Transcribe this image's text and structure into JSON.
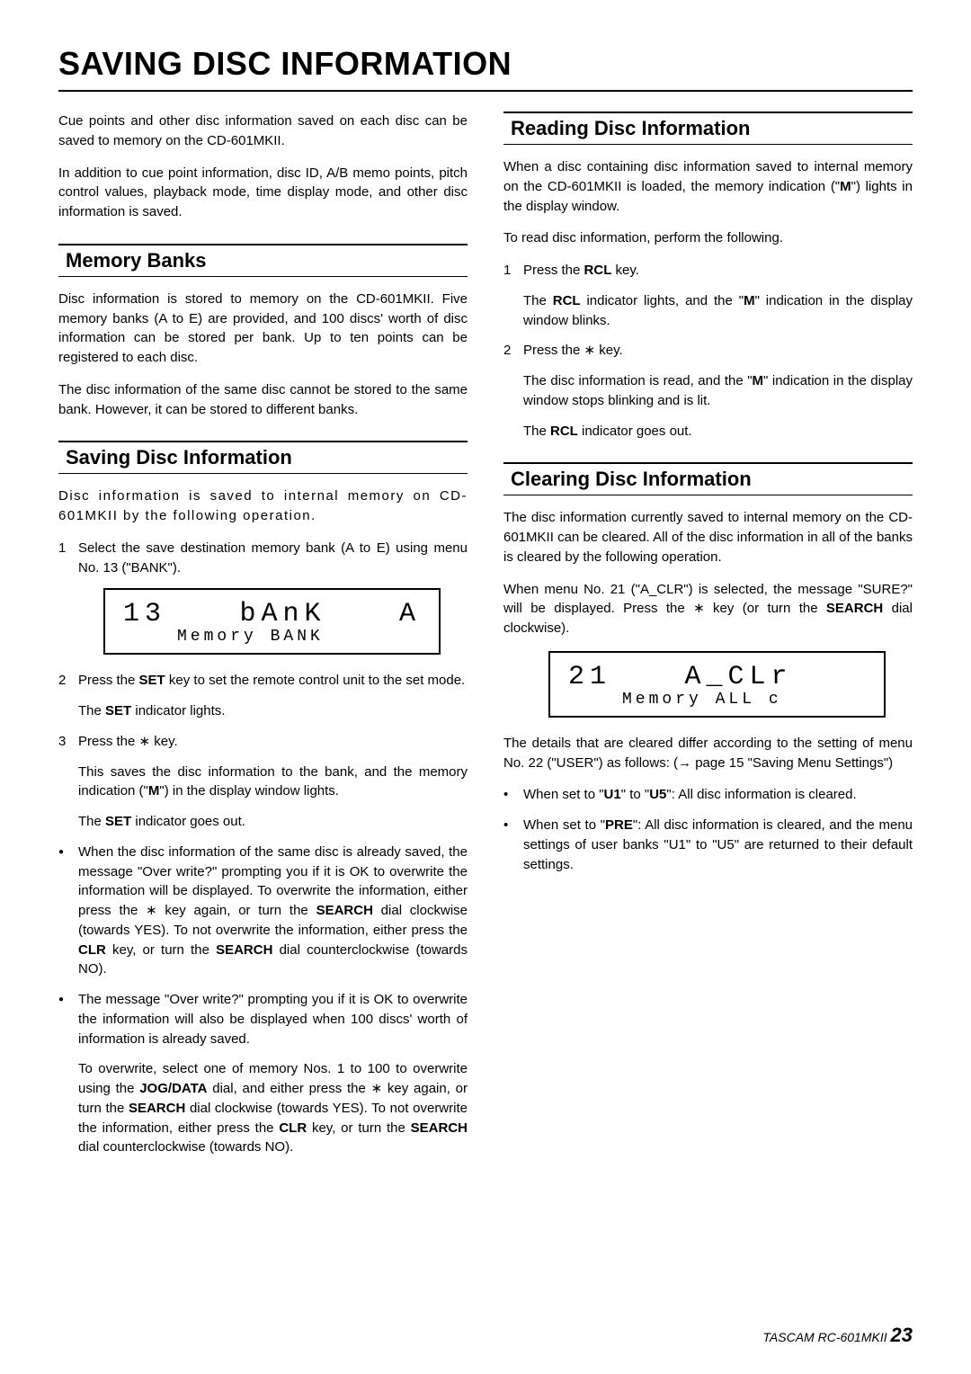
{
  "title": "SAVING DISC INFORMATION",
  "left": {
    "intro1": "Cue points and other disc information saved on each disc can be saved to memory on the CD-601MKII.",
    "intro2": "In addition to cue point information, disc ID, A/B memo points, pitch control values, playback mode, time display mode, and other disc information is saved.",
    "sec1_head": "Memory Banks",
    "sec1_p1": "Disc information is stored to memory on the CD-601MKII. Five memory banks (A to E) are provided, and 100 discs' worth of disc information can be stored per bank. Up to ten points can be registered to each disc.",
    "sec1_p2": "The disc information of the same disc cannot be stored to the same bank. However, it can be stored to different banks.",
    "sec2_head": "Saving Disc Information",
    "sec2_p1": "Disc information is saved to internal memory on CD-601MKII by the following operation.",
    "sec2_n1": "Select the save destination memory bank (A to E) using menu No. 13 (\"BANK\").",
    "lcd1_a": "13",
    "lcd1_b": "bAnK",
    "lcd1_c": "A",
    "lcd1_sub": "Memory BANK",
    "sec2_n2_html": "Press the <b>SET</b> key to set the remote control unit to the set mode.",
    "sec2_n2_sub_html": "The <b>SET</b> indicator lights.",
    "sec2_n3": "Press the ∗ key.",
    "sec2_n3_sub1_html": "This saves the disc information to the bank, and the memory indication (\"<b>M</b>\") in the display window lights.",
    "sec2_n3_sub2_html": "The <b>SET</b> indicator goes out.",
    "sec2_b1_html": "When the disc information of the same disc is already saved, the message \"Over write?\" prompting you if it is OK to overwrite the information will be displayed. To overwrite the information, either press the ∗ key again, or turn the <b>SEARCH</b> dial clockwise (towards YES). To not overwrite the information, either press the <b>CLR</b> key, or turn the <b>SEARCH</b> dial counterclockwise (towards NO).",
    "sec2_b2_html": "The message \"Over write?\" prompting you if it is OK to overwrite the information will also be displayed when 100 discs' worth of information is already saved.",
    "sec2_b2_sub_html": "To overwrite, select one of memory Nos. 1 to 100 to overwrite using the <b>JOG/DATA</b> dial, and either press the ∗ key again, or turn the <b>SEARCH</b> dial clockwise (towards YES). To not overwrite the information, either press the <b>CLR</b> key, or turn the <b>SEARCH</b> dial counterclockwise (towards NO)."
  },
  "right": {
    "sec1_head": "Reading Disc Information",
    "sec1_p1_html": "When a disc containing disc information saved to internal memory on the CD-601MKII is loaded, the memory indication (\"<b>M</b>\") lights in the display window.",
    "sec1_p2": "To read disc information, perform the following.",
    "sec1_n1_html": "Press the <b>RCL</b> key.",
    "sec1_n1_sub_html": "The <b>RCL</b> indicator lights, and the \"<b>M</b>\" indication in the display window blinks.",
    "sec1_n2": "Press the ∗ key.",
    "sec1_n2_sub1_html": "The disc information is read, and the \"<b>M</b>\" indication in the display window stops blinking and is lit.",
    "sec1_n2_sub2_html": "The <b>RCL</b> indicator goes out.",
    "sec2_head": "Clearing Disc Information",
    "sec2_p1": "The disc information currently saved to internal memory on the CD-601MKII can be cleared. All of the disc information in all of the banks is cleared by the following operation.",
    "sec2_p2_html": "When menu No. 21 (\"A_CLR\") is selected, the message \"SURE?\" will be displayed. Press the ∗ key (or turn the <b>SEARCH</b> dial clockwise).",
    "lcd2_a": "21",
    "lcd2_b": "A_CLr",
    "lcd2_sub": "Memory ALL c",
    "sec2_p3": "The details that are cleared differ according to the setting of menu No. 22 (\"USER\") as follows: (→ page 15 \"Saving Menu Settings\")",
    "sec2_b1_html": "When set to \"<b>U1</b>\" to \"<b>U5</b>\": All disc information is cleared.",
    "sec2_b2_html": "When set to \"<b>PRE</b>\": All disc information is cleared, and the menu settings of user banks \"U1\" to \"U5\" are returned to their default settings."
  },
  "footer_model": "TASCAM  RC-601MKII",
  "footer_page": "23"
}
